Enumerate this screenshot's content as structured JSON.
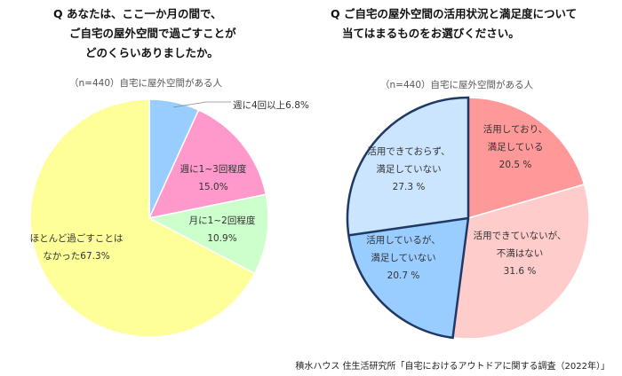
{
  "chart_data": [
    {
      "type": "pie",
      "title_lines": [
        "Q あなたは、ここ一か月の間で、",
        "ご自宅の屋外空間で過ごすことが",
        "どのくらいありましたか。"
      ],
      "subtitle": "（n=440）自宅に屋外空間がある人",
      "slices": [
        {
          "label_lines": [
            "週に4回以上6.8%"
          ],
          "value": 6.8,
          "color": "#99ccff"
        },
        {
          "label_lines": [
            "週に1~3回程度",
            "15.0%"
          ],
          "value": 15.0,
          "color": "#ff99cc"
        },
        {
          "label_lines": [
            "月に1~2回程度",
            "10.9%"
          ],
          "value": 10.9,
          "color": "#ccffcc"
        },
        {
          "label_lines": [
            "ほとんど過ごすことは",
            "なかった67.3%"
          ],
          "value": 67.3,
          "color": "#ffff99"
        }
      ]
    },
    {
      "type": "pie",
      "title_lines": [
        "Q ご自宅の屋外空間の活用状況と満足度について",
        "当てはまるものをお選びください。"
      ],
      "subtitle": "（n=440）自宅に屋外空間がある人",
      "slices": [
        {
          "label_lines": [
            "活用しており、",
            "満足している",
            "20.5 %"
          ],
          "value": 20.5,
          "color": "#ff9999"
        },
        {
          "label_lines": [
            "活用できていないが、",
            "不満はない",
            "31.6 %"
          ],
          "value": 31.6,
          "color": "#ffcccc"
        },
        {
          "label_lines": [
            "活用しているが、",
            "満足していない",
            "20.7 %"
          ],
          "value": 20.7,
          "color": "#99ccff",
          "highlight": true
        },
        {
          "label_lines": [
            "活用できておらず、",
            "満足していない",
            "27.3 %"
          ],
          "value": 27.3,
          "color": "#cce5ff",
          "highlight": true
        }
      ]
    }
  ],
  "source": "積水ハウス 住生活研究所「自宅におけるアウトドアに関する調査（2022年）」",
  "colors": {
    "highlight_border": "#1f3864"
  }
}
